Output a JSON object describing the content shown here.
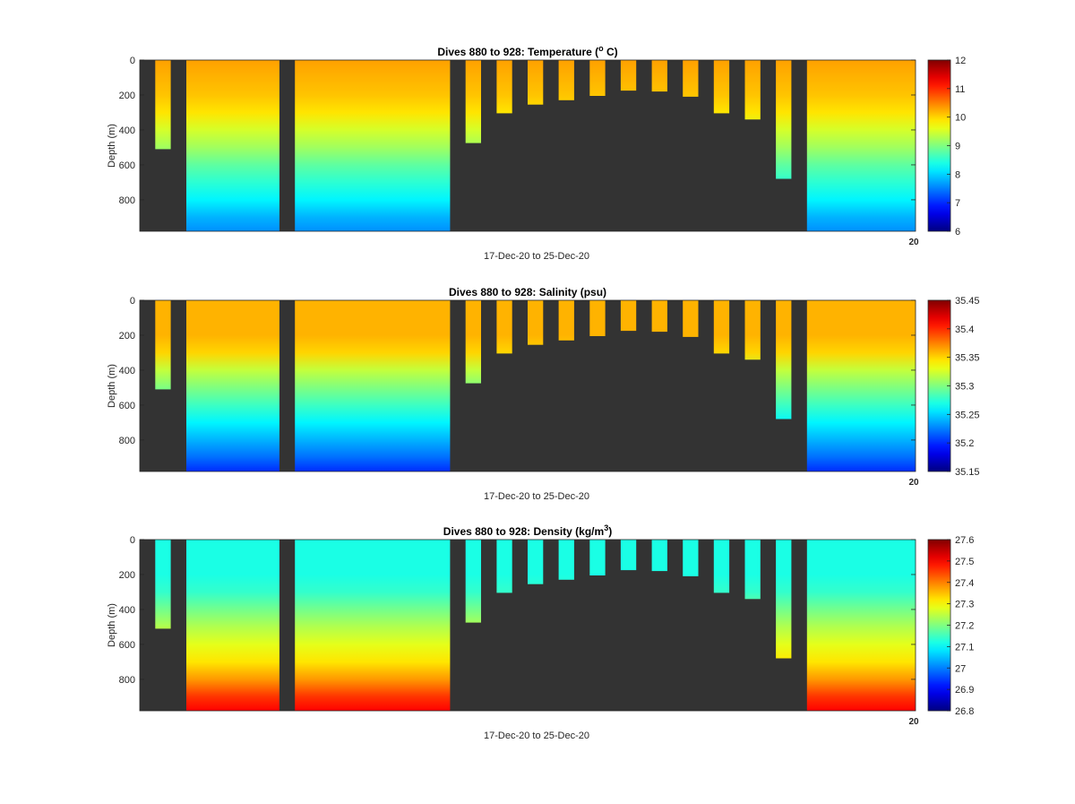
{
  "figure": {
    "xlabel": "17-Dec-20 to 25-Dec-20",
    "panels": [
      {
        "title_pre": "Dives 880 to 928: Temperature (",
        "title_sup": "o",
        "title_post": " C)",
        "ylabel": "Depth (m)",
        "variable": "temperature"
      },
      {
        "title_pre": "Dives 880 to 928: Salinity (psu)",
        "title_sup": "",
        "title_post": "",
        "ylabel": "Depth (m)",
        "variable": "salinity"
      },
      {
        "title_pre": "Dives 880 to 928: Density (kg/m",
        "title_sup": "3",
        "title_post": ")",
        "ylabel": "Depth (m)",
        "variable": "density"
      }
    ]
  },
  "chart_data": [
    {
      "type": "heatmap",
      "title": "Dives 880 to 928: Temperature (o C)",
      "xlabel": "17-Dec-20 to 25-Dec-20",
      "ylabel": "Depth (m)",
      "x_tick_labels": [
        "20"
      ],
      "y_ticks": [
        0,
        200,
        400,
        600,
        800
      ],
      "ylim": [
        0,
        980
      ],
      "y_reversed": true,
      "colorbar": {
        "range": [
          6,
          12
        ],
        "ticks": [
          6,
          7,
          8,
          9,
          10,
          11,
          12
        ]
      },
      "colormap": "jet",
      "background": "#333333",
      "profiles": [
        {
          "x0": 0.02,
          "x1": 0.04,
          "maxDepth": 510
        },
        {
          "x0": 0.06,
          "x1": 0.18,
          "maxDepth": 980
        },
        {
          "x0": 0.2,
          "x1": 0.4,
          "maxDepth": 980
        },
        {
          "x0": 0.42,
          "x1": 0.44,
          "maxDepth": 475
        },
        {
          "x0": 0.46,
          "x1": 0.48,
          "maxDepth": 305
        },
        {
          "x0": 0.5,
          "x1": 0.52,
          "maxDepth": 255
        },
        {
          "x0": 0.54,
          "x1": 0.56,
          "maxDepth": 230
        },
        {
          "x0": 0.58,
          "x1": 0.6,
          "maxDepth": 205
        },
        {
          "x0": 0.62,
          "x1": 0.64,
          "maxDepth": 175
        },
        {
          "x0": 0.66,
          "x1": 0.68,
          "maxDepth": 180
        },
        {
          "x0": 0.7,
          "x1": 0.72,
          "maxDepth": 210
        },
        {
          "x0": 0.74,
          "x1": 0.76,
          "maxDepth": 305
        },
        {
          "x0": 0.78,
          "x1": 0.8,
          "maxDepth": 340
        },
        {
          "x0": 0.82,
          "x1": 0.84,
          "maxDepth": 680
        },
        {
          "x0": 0.86,
          "x1": 1.0,
          "maxDepth": 980
        }
      ],
      "profile_depth": [
        0,
        200,
        300,
        400,
        500,
        600,
        700,
        800,
        900,
        980
      ],
      "profile_values": [
        10.3,
        10.1,
        9.9,
        9.5,
        9.2,
        8.8,
        8.5,
        8.2,
        7.8,
        7.6
      ]
    },
    {
      "type": "heatmap",
      "title": "Dives 880 to 928: Salinity (psu)",
      "xlabel": "17-Dec-20 to 25-Dec-20",
      "ylabel": "Depth (m)",
      "x_tick_labels": [
        "20"
      ],
      "y_ticks": [
        0,
        200,
        400,
        600,
        800
      ],
      "ylim": [
        0,
        980
      ],
      "y_reversed": true,
      "colorbar": {
        "range": [
          35.15,
          35.45
        ],
        "ticks": [
          35.15,
          35.2,
          35.25,
          35.3,
          35.35,
          35.4,
          35.45
        ]
      },
      "colormap": "jet",
      "background": "#333333",
      "profiles": [
        {
          "x0": 0.02,
          "x1": 0.04,
          "maxDepth": 510
        },
        {
          "x0": 0.06,
          "x1": 0.18,
          "maxDepth": 980
        },
        {
          "x0": 0.2,
          "x1": 0.4,
          "maxDepth": 980
        },
        {
          "x0": 0.42,
          "x1": 0.44,
          "maxDepth": 475
        },
        {
          "x0": 0.46,
          "x1": 0.48,
          "maxDepth": 305
        },
        {
          "x0": 0.5,
          "x1": 0.52,
          "maxDepth": 255
        },
        {
          "x0": 0.54,
          "x1": 0.56,
          "maxDepth": 230
        },
        {
          "x0": 0.58,
          "x1": 0.6,
          "maxDepth": 205
        },
        {
          "x0": 0.62,
          "x1": 0.64,
          "maxDepth": 175
        },
        {
          "x0": 0.66,
          "x1": 0.68,
          "maxDepth": 180
        },
        {
          "x0": 0.7,
          "x1": 0.72,
          "maxDepth": 210
        },
        {
          "x0": 0.74,
          "x1": 0.76,
          "maxDepth": 305
        },
        {
          "x0": 0.78,
          "x1": 0.8,
          "maxDepth": 340
        },
        {
          "x0": 0.82,
          "x1": 0.84,
          "maxDepth": 680
        },
        {
          "x0": 0.86,
          "x1": 1.0,
          "maxDepth": 980
        }
      ],
      "profile_depth": [
        0,
        200,
        300,
        400,
        500,
        600,
        700,
        800,
        900,
        980
      ],
      "profile_values": [
        35.36,
        35.36,
        35.35,
        35.32,
        35.3,
        35.28,
        35.26,
        35.24,
        35.22,
        35.2
      ]
    },
    {
      "type": "heatmap",
      "title": "Dives 880 to 928: Density (kg/m3)",
      "xlabel": "17-Dec-20 to 25-Dec-20",
      "ylabel": "Depth (m)",
      "x_tick_labels": [
        "20"
      ],
      "y_ticks": [
        0,
        200,
        400,
        600,
        800
      ],
      "ylim": [
        0,
        980
      ],
      "y_reversed": true,
      "colorbar": {
        "range": [
          26.8,
          27.6
        ],
        "ticks": [
          26.8,
          26.9,
          27,
          27.1,
          27.2,
          27.3,
          27.4,
          27.5,
          27.6
        ]
      },
      "colormap": "jet",
      "background": "#333333",
      "profiles": [
        {
          "x0": 0.02,
          "x1": 0.04,
          "maxDepth": 510
        },
        {
          "x0": 0.06,
          "x1": 0.18,
          "maxDepth": 980
        },
        {
          "x0": 0.2,
          "x1": 0.4,
          "maxDepth": 980
        },
        {
          "x0": 0.42,
          "x1": 0.44,
          "maxDepth": 475
        },
        {
          "x0": 0.46,
          "x1": 0.48,
          "maxDepth": 305
        },
        {
          "x0": 0.5,
          "x1": 0.52,
          "maxDepth": 255
        },
        {
          "x0": 0.54,
          "x1": 0.56,
          "maxDepth": 230
        },
        {
          "x0": 0.58,
          "x1": 0.6,
          "maxDepth": 205
        },
        {
          "x0": 0.62,
          "x1": 0.64,
          "maxDepth": 175
        },
        {
          "x0": 0.66,
          "x1": 0.68,
          "maxDepth": 180
        },
        {
          "x0": 0.7,
          "x1": 0.72,
          "maxDepth": 210
        },
        {
          "x0": 0.74,
          "x1": 0.76,
          "maxDepth": 305
        },
        {
          "x0": 0.78,
          "x1": 0.8,
          "maxDepth": 340
        },
        {
          "x0": 0.82,
          "x1": 0.84,
          "maxDepth": 680
        },
        {
          "x0": 0.86,
          "x1": 1.0,
          "maxDepth": 980
        }
      ],
      "profile_depth": [
        0,
        200,
        300,
        400,
        500,
        600,
        700,
        800,
        900,
        980
      ],
      "profile_values": [
        27.12,
        27.12,
        27.14,
        27.19,
        27.24,
        27.28,
        27.32,
        27.38,
        27.46,
        27.5
      ]
    }
  ]
}
